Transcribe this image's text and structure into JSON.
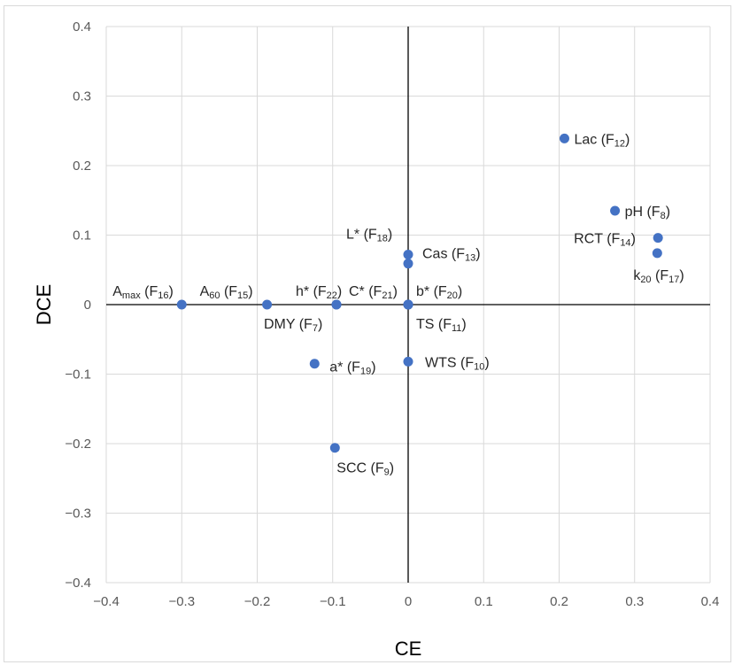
{
  "chart_data": {
    "type": "scatter",
    "title": "",
    "xlabel": "CE",
    "ylabel": "DCE",
    "xlim": [
      -0.4,
      0.4
    ],
    "ylim": [
      -0.4,
      0.4
    ],
    "xticks": [
      -0.4,
      -0.3,
      -0.2,
      -0.1,
      0,
      0.1,
      0.2,
      0.3,
      0.4
    ],
    "yticks": [
      -0.4,
      -0.3,
      -0.2,
      -0.1,
      0,
      0.1,
      0.2,
      0.3,
      0.4
    ],
    "xtick_labels": [
      "−0.4",
      "−0.3",
      "−0.2",
      "−0.1",
      "0",
      "0.1",
      "0.2",
      "0.3",
      "0.4"
    ],
    "ytick_labels": [
      "−0.4",
      "−0.3",
      "−0.2",
      "−0.1",
      "0",
      "0.1",
      "0.2",
      "0.3",
      "0.4"
    ],
    "grid": true,
    "legend": "none",
    "colors": {
      "marker": "#4472c4",
      "grid": "#d9d9d9",
      "axis": "#000000"
    },
    "points": [
      {
        "base": "A",
        "sub": "max",
        "suffix": " (F",
        "fsub": "16",
        "x": -0.3,
        "y": 0.0
      },
      {
        "base": "A",
        "sub": "60",
        "suffix": " (F",
        "fsub": "15",
        "x": -0.187,
        "y": 0.0
      },
      {
        "base": "h*",
        "sub": "",
        "suffix": " (F",
        "fsub": "22",
        "x": -0.095,
        "y": 0.0
      },
      {
        "base": "C*",
        "sub": "",
        "suffix": " (F",
        "fsub": "21",
        "x": 0.0,
        "y": 0.0
      },
      {
        "base": "b*",
        "sub": "",
        "suffix": " (F",
        "fsub": "20",
        "x": 0.0,
        "y": 0.0
      },
      {
        "base": "DMY",
        "sub": "",
        "suffix": " (F",
        "fsub": "7",
        "x": -0.095,
        "y": 0.0
      },
      {
        "base": "TS",
        "sub": "",
        "suffix": " (F",
        "fsub": "11",
        "x": 0.0,
        "y": 0.0
      },
      {
        "base": "L*",
        "sub": "",
        "suffix": " (F",
        "fsub": "18",
        "x": 0.0,
        "y": 0.072
      },
      {
        "base": "Cas",
        "sub": "",
        "suffix": " (F",
        "fsub": "13",
        "x": 0.0,
        "y": 0.059
      },
      {
        "base": "Lac",
        "sub": "",
        "suffix": " (F",
        "fsub": "12",
        "x": 0.207,
        "y": 0.239
      },
      {
        "base": "pH",
        "sub": "",
        "suffix": " (F",
        "fsub": "8",
        "x": 0.274,
        "y": 0.135
      },
      {
        "base": "RCT",
        "sub": "",
        "suffix": " (F",
        "fsub": "14",
        "x": 0.331,
        "y": 0.096
      },
      {
        "base": "k",
        "sub": "20",
        "suffix": " (F",
        "fsub": "17",
        "x": 0.33,
        "y": 0.074
      },
      {
        "base": "a*",
        "sub": "",
        "suffix": " (F",
        "fsub": "19",
        "x": -0.124,
        "y": -0.085
      },
      {
        "base": "WTS",
        "sub": "",
        "suffix": " (F",
        "fsub": "10",
        "x": 0.0,
        "y": -0.082
      },
      {
        "base": "SCC",
        "sub": "",
        "suffix": " (F",
        "fsub": "9",
        "x": -0.097,
        "y": -0.206
      }
    ]
  }
}
